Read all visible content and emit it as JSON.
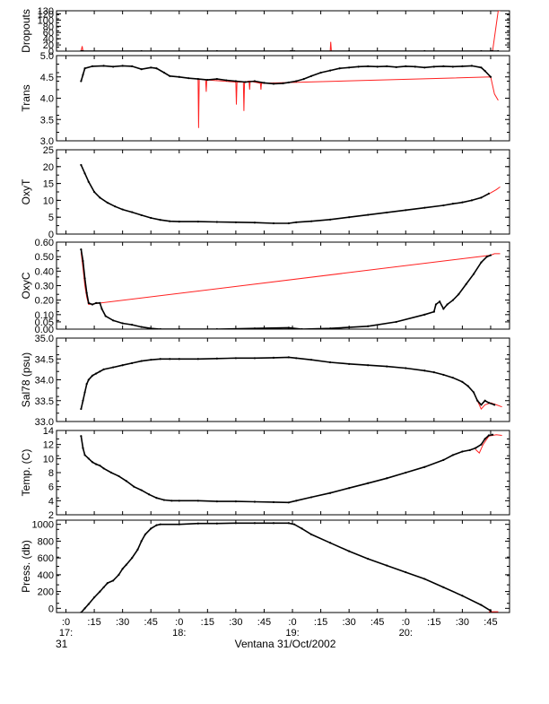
{
  "colors": {
    "series": "#000000",
    "raw": "#ff2020",
    "axis": "#000000",
    "background": "#ffffff"
  },
  "xaxis": {
    "tick_labels": [
      ":0",
      ":15",
      ":30",
      ":45",
      ":0",
      ":15",
      ":30",
      ":45",
      ":0",
      ":15",
      ":30",
      ":45",
      ":0",
      ":15",
      ":30",
      ":45"
    ],
    "tick_minutes": [
      0,
      15,
      30,
      45,
      60,
      75,
      90,
      105,
      120,
      135,
      150,
      165,
      180,
      195,
      210,
      225
    ],
    "hour_labels": [
      "17:",
      "18:",
      "19:",
      "20:"
    ],
    "hour_minutes": [
      0,
      60,
      120,
      180
    ],
    "day_label": "31",
    "caption": "Ventana 31/Oct/2002"
  },
  "chart_data": [
    {
      "type": "line",
      "ylabel": "Dropouts",
      "ylim": [
        0,
        130
      ],
      "ticks": [
        {
          "v": 0,
          "l": "0"
        },
        {
          "v": 20,
          "l": "20"
        },
        {
          "v": 40,
          "l": "40"
        },
        {
          "v": 60,
          "l": "60"
        },
        {
          "v": 80,
          "l": "80"
        },
        {
          "v": 100,
          "l": "100"
        },
        {
          "v": 120,
          "l": "120"
        },
        {
          "v": 130,
          "l": "130"
        }
      ],
      "x": [
        8,
        8.5,
        9,
        40,
        80,
        119,
        119.5,
        120,
        121,
        150,
        190,
        220,
        225,
        225.5,
        226,
        229
      ],
      "y": [
        0,
        0,
        0,
        0,
        0,
        0,
        0,
        0,
        0,
        0,
        0,
        0,
        0,
        0,
        0,
        0
      ],
      "raw_x": [
        8,
        8.6,
        9,
        140,
        140.3,
        140.6,
        141,
        225,
        226,
        229,
        230
      ],
      "raw_y": [
        0,
        16,
        0,
        0,
        30,
        0,
        0,
        0,
        0,
        130,
        130
      ]
    },
    {
      "type": "line",
      "ylabel": "Trans",
      "ylim": [
        3.0,
        5.0
      ],
      "ticks": [
        {
          "v": 3.0,
          "l": "3.0"
        },
        {
          "v": 3.5,
          "l": "3.5"
        },
        {
          "v": 4.0,
          "l": "4.0"
        },
        {
          "v": 4.5,
          "l": "4.5"
        },
        {
          "v": 5.0,
          "l": "5.0"
        }
      ],
      "x": [
        8,
        9,
        10,
        14,
        20,
        25,
        30,
        35,
        40,
        45,
        48,
        52,
        55,
        60,
        65,
        70,
        75,
        80,
        85,
        90,
        95,
        100,
        105,
        110,
        115,
        118,
        122,
        126,
        130,
        135,
        140,
        145,
        150,
        155,
        160,
        165,
        170,
        175,
        180,
        185,
        190,
        195,
        200,
        205,
        210,
        215,
        220,
        222,
        225
      ],
      "y": [
        4.4,
        4.55,
        4.7,
        4.75,
        4.76,
        4.74,
        4.76,
        4.75,
        4.68,
        4.72,
        4.7,
        4.6,
        4.52,
        4.5,
        4.47,
        4.45,
        4.43,
        4.45,
        4.42,
        4.4,
        4.38,
        4.4,
        4.36,
        4.34,
        4.35,
        4.37,
        4.4,
        4.45,
        4.52,
        4.6,
        4.65,
        4.7,
        4.72,
        4.74,
        4.75,
        4.74,
        4.75,
        4.73,
        4.75,
        4.74,
        4.72,
        4.74,
        4.75,
        4.74,
        4.75,
        4.76,
        4.72,
        4.64,
        4.5
      ],
      "raw_x": [
        70,
        70.3,
        70.6,
        74,
        74.3,
        74.6,
        90,
        90.3,
        90.6,
        94,
        94.3,
        94.6,
        97,
        97.3,
        97.6,
        103,
        103.3,
        103.6,
        225,
        227,
        229
      ],
      "raw_y": [
        4.45,
        3.3,
        4.45,
        4.43,
        4.15,
        4.43,
        4.38,
        3.85,
        4.38,
        4.38,
        3.7,
        4.38,
        4.4,
        4.2,
        4.4,
        4.35,
        4.2,
        4.35,
        4.5,
        4.1,
        3.95
      ]
    },
    {
      "type": "line",
      "ylabel": "OxyT",
      "ylim": [
        0,
        25
      ],
      "ticks": [
        {
          "v": 0,
          "l": "0"
        },
        {
          "v": 5,
          "l": "5"
        },
        {
          "v": 10,
          "l": "10"
        },
        {
          "v": 15,
          "l": "15"
        },
        {
          "v": 20,
          "l": "20"
        },
        {
          "v": 25,
          "l": "25"
        }
      ],
      "x": [
        8,
        10,
        12,
        15,
        18,
        22,
        26,
        30,
        35,
        40,
        45,
        50,
        55,
        60,
        70,
        80,
        90,
        100,
        110,
        118,
        122,
        130,
        140,
        150,
        160,
        170,
        180,
        190,
        200,
        205,
        210,
        215,
        220,
        224
      ],
      "y": [
        20.5,
        18,
        15.5,
        12.5,
        10.8,
        9.3,
        8.2,
        7.3,
        6.5,
        5.6,
        4.8,
        4.2,
        3.8,
        3.7,
        3.7,
        3.6,
        3.5,
        3.4,
        3.2,
        3.2,
        3.5,
        3.8,
        4.3,
        5.0,
        5.7,
        6.4,
        7.1,
        7.8,
        8.5,
        9.0,
        9.4,
        10.0,
        10.8,
        12.0
      ],
      "raw_x": [
        222,
        225,
        228,
        230
      ],
      "raw_y": [
        11.5,
        12.2,
        13.2,
        14.0
      ]
    },
    {
      "type": "line",
      "ylabel": "OxyC",
      "ylim": [
        0,
        0.6
      ],
      "ticks": [
        {
          "v": 0.0,
          "l": "0.00"
        },
        {
          "v": 0.05,
          "l": "0.05"
        },
        {
          "v": 0.1,
          "l": "0.10"
        },
        {
          "v": 0.2,
          "l": "0.20"
        },
        {
          "v": 0.3,
          "l": "0.30"
        },
        {
          "v": 0.4,
          "l": "0.40"
        },
        {
          "v": 0.5,
          "l": "0.50"
        },
        {
          "v": 0.6,
          "l": "0.60"
        }
      ],
      "x": [
        8,
        9,
        10,
        11,
        12,
        14,
        16,
        18,
        19,
        21,
        25,
        30,
        35,
        40,
        45,
        50,
        60,
        80,
        100,
        118,
        125,
        140,
        160,
        175,
        190,
        195,
        196,
        198,
        200,
        202,
        205,
        208,
        212,
        216,
        220,
        223,
        225
      ],
      "y": [
        0.55,
        0.47,
        0.35,
        0.25,
        0.18,
        0.17,
        0.18,
        0.18,
        0.14,
        0.09,
        0.06,
        0.04,
        0.03,
        0.015,
        0.005,
        0.0,
        0.0,
        0.0,
        0.005,
        0.01,
        0.0,
        0.005,
        0.02,
        0.05,
        0.1,
        0.12,
        0.17,
        0.19,
        0.14,
        0.17,
        0.2,
        0.24,
        0.31,
        0.38,
        0.46,
        0.5,
        0.51
      ],
      "raw_x": [
        8,
        9,
        10,
        11,
        12,
        225,
        227,
        230
      ],
      "raw_y": [
        0.53,
        0.42,
        0.3,
        0.22,
        0.17,
        0.51,
        0.52,
        0.52
      ]
    },
    {
      "type": "line",
      "ylabel": "Sal78 (psu)",
      "ylim": [
        33.0,
        35.0
      ],
      "ticks": [
        {
          "v": 33.0,
          "l": "33.0"
        },
        {
          "v": 33.5,
          "l": "33.5"
        },
        {
          "v": 34.0,
          "l": "34.0"
        },
        {
          "v": 34.5,
          "l": "34.5"
        },
        {
          "v": 35.0,
          "l": "35.0"
        }
      ],
      "x": [
        8,
        9,
        10,
        11,
        12,
        14,
        16,
        18,
        20,
        25,
        30,
        35,
        40,
        45,
        50,
        55,
        60,
        70,
        80,
        90,
        100,
        110,
        118,
        122,
        130,
        140,
        150,
        160,
        170,
        180,
        190,
        195,
        200,
        205,
        210,
        213,
        216,
        218,
        220,
        222,
        224,
        227
      ],
      "y": [
        33.3,
        33.5,
        33.7,
        33.9,
        34.0,
        34.1,
        34.15,
        34.2,
        34.25,
        34.3,
        34.35,
        34.4,
        34.45,
        34.48,
        34.5,
        34.5,
        34.5,
        34.5,
        34.51,
        34.52,
        34.52,
        34.53,
        34.54,
        34.52,
        34.48,
        34.42,
        34.38,
        34.35,
        34.32,
        34.28,
        34.22,
        34.18,
        34.12,
        34.05,
        33.95,
        33.85,
        33.7,
        33.5,
        33.4,
        33.5,
        33.45,
        33.4
      ],
      "raw_x": [
        218,
        220,
        222,
        225,
        228,
        231
      ],
      "raw_y": [
        33.5,
        33.3,
        33.4,
        33.45,
        33.4,
        33.35
      ]
    },
    {
      "type": "line",
      "ylabel": "Temp. (C)",
      "ylim": [
        2,
        14
      ],
      "ticks": [
        {
          "v": 2,
          "l": "2"
        },
        {
          "v": 4,
          "l": "4"
        },
        {
          "v": 6,
          "l": "6"
        },
        {
          "v": 8,
          "l": "8"
        },
        {
          "v": 10,
          "l": "10"
        },
        {
          "v": 12,
          "l": "12"
        },
        {
          "v": 14,
          "l": "14"
        }
      ],
      "x": [
        8,
        9,
        10,
        12,
        14,
        16,
        18,
        20,
        24,
        28,
        32,
        36,
        40,
        44,
        48,
        52,
        56,
        60,
        70,
        80,
        90,
        100,
        110,
        118,
        122,
        130,
        140,
        150,
        160,
        170,
        180,
        190,
        200,
        205,
        210,
        214,
        217,
        220,
        222,
        224,
        226
      ],
      "y": [
        13.2,
        11.5,
        10.5,
        10.0,
        9.5,
        9.2,
        9.0,
        8.6,
        8.0,
        7.5,
        6.8,
        6.0,
        5.5,
        4.9,
        4.4,
        4.1,
        4.0,
        4.0,
        4.0,
        3.9,
        3.9,
        3.85,
        3.8,
        3.75,
        4.0,
        4.5,
        5.1,
        5.8,
        6.5,
        7.2,
        8.0,
        8.8,
        9.8,
        10.5,
        11.0,
        11.2,
        11.5,
        12.0,
        12.8,
        13.3,
        13.4
      ],
      "raw_x": [
        217,
        219,
        221,
        224,
        228,
        231
      ],
      "raw_y": [
        11.3,
        10.8,
        12.0,
        13.2,
        13.4,
        13.3
      ]
    },
    {
      "type": "line",
      "ylabel": "Press. (db)",
      "ylim": [
        -50,
        1050
      ],
      "ticks": [
        {
          "v": 0,
          "l": "0"
        },
        {
          "v": 200,
          "l": "200"
        },
        {
          "v": 400,
          "l": "400"
        },
        {
          "v": 600,
          "l": "600"
        },
        {
          "v": 800,
          "l": "800"
        },
        {
          "v": 1000,
          "l": "1000"
        }
      ],
      "x": [
        8,
        10,
        12,
        15,
        18,
        20,
        22,
        25,
        28,
        30,
        32,
        35,
        38,
        40,
        42,
        45,
        48,
        50,
        60,
        70,
        80,
        90,
        100,
        110,
        118,
        121,
        125,
        130,
        140,
        150,
        160,
        170,
        180,
        190,
        200,
        210,
        220,
        225
      ],
      "y": [
        -50,
        0,
        50,
        130,
        200,
        250,
        300,
        330,
        400,
        470,
        520,
        600,
        700,
        800,
        880,
        950,
        990,
        1000,
        1000,
        1010,
        1010,
        1015,
        1015,
        1015,
        1015,
        1000,
        950,
        880,
        780,
        680,
        590,
        510,
        430,
        350,
        250,
        150,
        40,
        -30
      ],
      "raw_x": [
        224,
        229
      ],
      "raw_y": [
        -40,
        -40
      ]
    }
  ]
}
